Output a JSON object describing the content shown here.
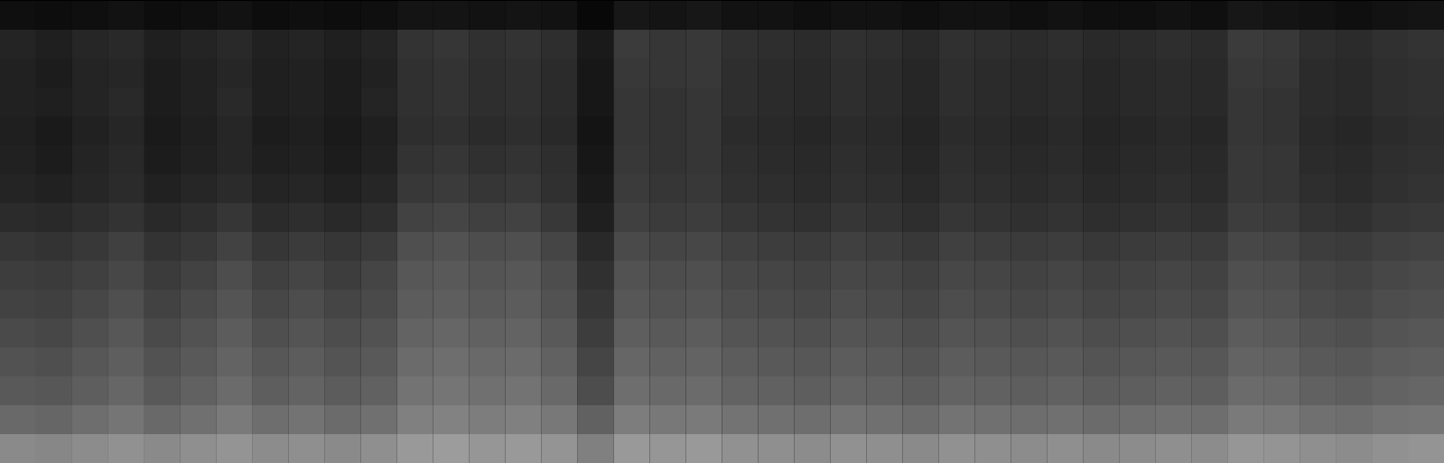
{
  "chart_data": {
    "type": "heatmap",
    "tick_labels": false,
    "zlim": [
      0,
      100
    ],
    "cells": [
      [
        6,
        5,
        6,
        7,
        5,
        6,
        7,
        5,
        6,
        5,
        6,
        8,
        8,
        7,
        8,
        7,
        3,
        9,
        8,
        9,
        7,
        7,
        6,
        7,
        7,
        6,
        7,
        7,
        6,
        7,
        6,
        6,
        7,
        6,
        9,
        8,
        7,
        6,
        7,
        8
      ],
      [
        14,
        12,
        15,
        16,
        12,
        14,
        16,
        13,
        14,
        12,
        14,
        20,
        21,
        19,
        20,
        18,
        10,
        23,
        21,
        22,
        19,
        18,
        17,
        19,
        18,
        16,
        19,
        18,
        17,
        18,
        16,
        17,
        18,
        17,
        23,
        22,
        18,
        17,
        19,
        20
      ],
      [
        13,
        11,
        14,
        15,
        11,
        13,
        15,
        12,
        13,
        11,
        13,
        19,
        20,
        18,
        19,
        17,
        9,
        22,
        21,
        22,
        18,
        17,
        16,
        18,
        17,
        15,
        18,
        17,
        16,
        17,
        15,
        16,
        17,
        16,
        22,
        21,
        17,
        16,
        18,
        19
      ],
      [
        13,
        12,
        14,
        16,
        11,
        13,
        16,
        12,
        13,
        11,
        14,
        19,
        20,
        18,
        19,
        17,
        9,
        21,
        20,
        21,
        18,
        17,
        16,
        18,
        17,
        15,
        18,
        17,
        16,
        17,
        15,
        16,
        17,
        16,
        21,
        20,
        17,
        16,
        18,
        19
      ],
      [
        12,
        10,
        13,
        15,
        10,
        12,
        15,
        11,
        12,
        10,
        12,
        18,
        19,
        17,
        18,
        16,
        8,
        21,
        20,
        21,
        17,
        16,
        15,
        17,
        16,
        14,
        17,
        16,
        15,
        16,
        14,
        15,
        16,
        15,
        21,
        20,
        16,
        15,
        17,
        18
      ],
      [
        13,
        11,
        14,
        16,
        11,
        13,
        15,
        12,
        13,
        11,
        13,
        20,
        21,
        19,
        20,
        18,
        9,
        22,
        20,
        21,
        18,
        17,
        16,
        18,
        17,
        15,
        18,
        17,
        16,
        17,
        15,
        16,
        17,
        16,
        22,
        21,
        17,
        16,
        18,
        19
      ],
      [
        14,
        13,
        15,
        17,
        13,
        15,
        17,
        14,
        15,
        13,
        15,
        22,
        23,
        21,
        22,
        19,
        10,
        23,
        21,
        22,
        19,
        18,
        17,
        19,
        18,
        16,
        19,
        18,
        17,
        18,
        16,
        17,
        18,
        17,
        22,
        21,
        18,
        17,
        19,
        20
      ],
      [
        17,
        16,
        18,
        20,
        16,
        18,
        21,
        17,
        18,
        16,
        18,
        26,
        27,
        25,
        26,
        22,
        12,
        25,
        23,
        24,
        21,
        20,
        19,
        21,
        20,
        18,
        21,
        20,
        19,
        20,
        18,
        19,
        20,
        19,
        24,
        23,
        20,
        19,
        21,
        22
      ],
      [
        21,
        20,
        22,
        25,
        20,
        22,
        26,
        21,
        23,
        21,
        23,
        31,
        32,
        30,
        31,
        27,
        16,
        29,
        27,
        28,
        25,
        24,
        23,
        25,
        24,
        22,
        25,
        24,
        23,
        24,
        22,
        23,
        24,
        23,
        28,
        27,
        24,
        23,
        25,
        26
      ],
      [
        24,
        23,
        25,
        28,
        23,
        26,
        30,
        25,
        27,
        24,
        27,
        34,
        35,
        33,
        34,
        30,
        19,
        32,
        30,
        31,
        28,
        27,
        26,
        28,
        27,
        25,
        28,
        27,
        26,
        27,
        25,
        26,
        27,
        26,
        31,
        30,
        27,
        26,
        28,
        29
      ],
      [
        26,
        25,
        28,
        31,
        26,
        29,
        33,
        28,
        30,
        27,
        29,
        36,
        37,
        35,
        36,
        32,
        21,
        34,
        32,
        33,
        30,
        29,
        28,
        30,
        29,
        27,
        30,
        29,
        28,
        29,
        27,
        28,
        29,
        28,
        33,
        32,
        29,
        28,
        30,
        31
      ],
      [
        29,
        28,
        31,
        34,
        29,
        32,
        36,
        31,
        33,
        30,
        32,
        39,
        40,
        38,
        39,
        35,
        24,
        37,
        35,
        36,
        33,
        32,
        31,
        33,
        32,
        30,
        33,
        32,
        31,
        32,
        30,
        31,
        32,
        31,
        36,
        35,
        32,
        31,
        33,
        34
      ],
      [
        32,
        31,
        34,
        37,
        32,
        35,
        39,
        34,
        36,
        33,
        35,
        42,
        43,
        41,
        42,
        38,
        27,
        40,
        38,
        39,
        36,
        35,
        34,
        36,
        35,
        33,
        36,
        35,
        34,
        35,
        33,
        34,
        35,
        34,
        39,
        38,
        35,
        34,
        36,
        37
      ],
      [
        35,
        34,
        37,
        40,
        35,
        38,
        42,
        37,
        39,
        36,
        38,
        45,
        46,
        44,
        45,
        41,
        30,
        43,
        41,
        42,
        39,
        38,
        37,
        39,
        38,
        36,
        39,
        38,
        37,
        38,
        36,
        37,
        38,
        37,
        42,
        41,
        38,
        37,
        39,
        40
      ],
      [
        41,
        40,
        43,
        46,
        41,
        44,
        48,
        43,
        45,
        42,
        44,
        50,
        51,
        49,
        50,
        47,
        38,
        49,
        47,
        48,
        45,
        44,
        43,
        45,
        44,
        42,
        45,
        44,
        43,
        44,
        42,
        43,
        44,
        43,
        48,
        47,
        44,
        43,
        45,
        46
      ],
      [
        54,
        53,
        55,
        57,
        54,
        56,
        58,
        55,
        56,
        54,
        56,
        60,
        61,
        59,
        60,
        58,
        50,
        60,
        59,
        60,
        57,
        56,
        55,
        57,
        56,
        54,
        57,
        56,
        55,
        56,
        54,
        55,
        56,
        55,
        59,
        58,
        56,
        55,
        57,
        58
      ]
    ]
  }
}
